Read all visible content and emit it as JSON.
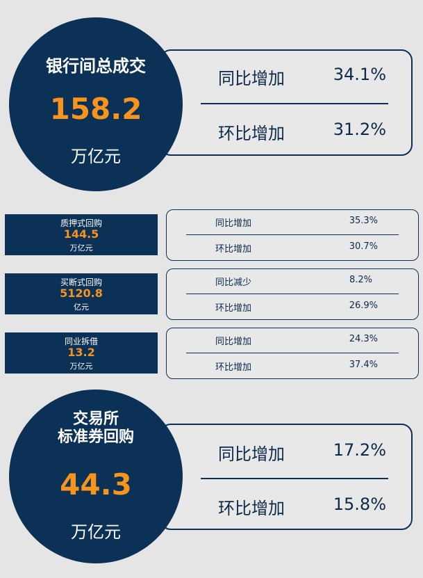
{
  "interbank": {
    "title": "银行间总成交",
    "value": "158.2",
    "unit": "万亿元",
    "yoy_label": "同比增加",
    "yoy_value": "34.1%",
    "mom_label": "环比增加",
    "mom_value": "31.2%"
  },
  "pledged_repo": {
    "title": "质押式回购",
    "value": "144.5",
    "unit": "万亿元",
    "yoy_label": "同比增加",
    "yoy_value": "35.3%",
    "mom_label": "环比增加",
    "mom_value": "30.7%"
  },
  "outright_repo": {
    "title": "买断式回购",
    "value": "5120.8",
    "unit": "亿元",
    "yoy_label": "同比减少",
    "yoy_value": "8.2%",
    "mom_label": "环比增加",
    "mom_value": "26.9%"
  },
  "interbank_lending": {
    "title": "同业拆借",
    "value": "13.2",
    "unit": "万亿元",
    "yoy_label": "同比增加",
    "yoy_value": "24.3%",
    "mom_label": "环比增加",
    "mom_value": "37.4%"
  },
  "exchange": {
    "title_line1": "交易所",
    "title_line2": "标准券回购",
    "value": "44.3",
    "unit": "万亿元",
    "yoy_label": "同比增加",
    "yoy_value": "17.2%",
    "mom_label": "环比增加",
    "mom_value": "15.8%"
  },
  "colors": {
    "navy": "#0b3157",
    "orange": "#f7941d",
    "background": "#e6e5e6"
  }
}
